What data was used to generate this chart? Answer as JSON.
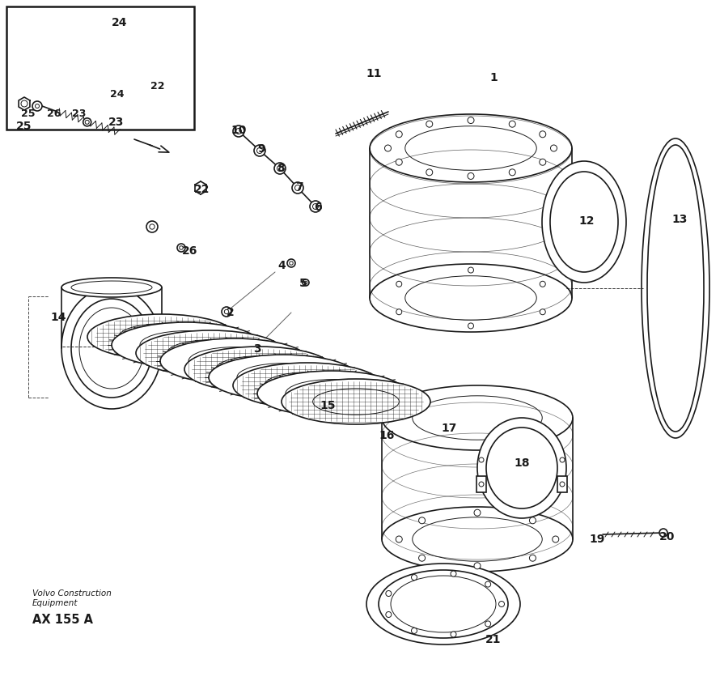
{
  "bg_color": "#ffffff",
  "line_color": "#1a1a1a",
  "title_text": "Volvo Construction\nEquipment",
  "ref_text": "AX 155 A",
  "figsize": [
    8.9,
    8.46
  ],
  "dpi": 100
}
